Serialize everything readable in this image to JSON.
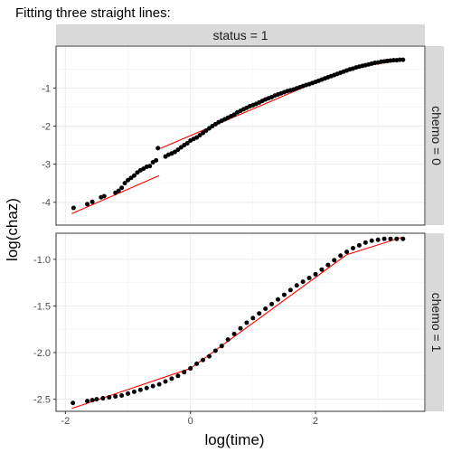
{
  "chart_data": {
    "type": "scatter",
    "title": "Fitting three straight lines:",
    "xlabel": "log(time)",
    "ylabel": "log(chaz)",
    "column_strip": "status = 1",
    "grid": true,
    "x_range": [
      -2.15,
      3.75
    ],
    "x_ticks": [
      -2,
      0,
      2
    ],
    "x_tick_labels": [
      "-2",
      "0",
      "2"
    ],
    "colors": {
      "points": "#000000",
      "fit": "#ff0000",
      "strip": "#d9d9d9",
      "grid": "#ebebeb",
      "border": "#333333"
    },
    "panels": [
      {
        "strip": "chemo = 0",
        "y_range": [
          -4.6,
          0.1
        ],
        "y_ticks": [
          -4,
          -3,
          -2,
          -1
        ],
        "y_tick_labels": [
          "-4",
          "-3",
          "-2",
          "-1"
        ],
        "points": [
          [
            -1.87,
            -4.15
          ],
          [
            -1.65,
            -4.05
          ],
          [
            -1.57,
            -3.99
          ],
          [
            -1.43,
            -3.87
          ],
          [
            -1.38,
            -3.84
          ],
          [
            -1.2,
            -3.75
          ],
          [
            -1.15,
            -3.7
          ],
          [
            -1.1,
            -3.62
          ],
          [
            -1.05,
            -3.5
          ],
          [
            -1.0,
            -3.42
          ],
          [
            -0.95,
            -3.36
          ],
          [
            -0.9,
            -3.3
          ],
          [
            -0.85,
            -3.22
          ],
          [
            -0.8,
            -3.16
          ],
          [
            -0.75,
            -3.12
          ],
          [
            -0.7,
            -3.07
          ],
          [
            -0.65,
            -3.05
          ],
          [
            -0.6,
            -2.95
          ],
          [
            -0.55,
            -2.9
          ],
          [
            -0.52,
            -2.58
          ],
          [
            -0.4,
            -2.8
          ],
          [
            -0.35,
            -2.75
          ],
          [
            -0.3,
            -2.72
          ],
          [
            -0.25,
            -2.68
          ],
          [
            -0.2,
            -2.62
          ],
          [
            -0.15,
            -2.56
          ],
          [
            -0.1,
            -2.5
          ],
          [
            -0.05,
            -2.45
          ],
          [
            0.0,
            -2.38
          ],
          [
            0.05,
            -2.34
          ],
          [
            0.1,
            -2.3
          ],
          [
            0.15,
            -2.24
          ],
          [
            0.2,
            -2.18
          ],
          [
            0.25,
            -2.12
          ],
          [
            0.3,
            -2.06
          ],
          [
            0.35,
            -2.0
          ],
          [
            0.4,
            -1.95
          ],
          [
            0.45,
            -1.9
          ],
          [
            0.5,
            -1.86
          ],
          [
            0.55,
            -1.82
          ],
          [
            0.6,
            -1.78
          ],
          [
            0.65,
            -1.74
          ],
          [
            0.7,
            -1.7
          ],
          [
            0.75,
            -1.64
          ],
          [
            0.8,
            -1.6
          ],
          [
            0.85,
            -1.56
          ],
          [
            0.9,
            -1.52
          ],
          [
            0.95,
            -1.48
          ],
          [
            1.0,
            -1.45
          ],
          [
            1.05,
            -1.42
          ],
          [
            1.1,
            -1.38
          ],
          [
            1.15,
            -1.34
          ],
          [
            1.2,
            -1.3
          ],
          [
            1.25,
            -1.27
          ],
          [
            1.3,
            -1.24
          ],
          [
            1.35,
            -1.2
          ],
          [
            1.4,
            -1.17
          ],
          [
            1.45,
            -1.14
          ],
          [
            1.5,
            -1.11
          ],
          [
            1.55,
            -1.08
          ],
          [
            1.6,
            -1.06
          ],
          [
            1.65,
            -1.04
          ],
          [
            1.7,
            -1.01
          ],
          [
            1.75,
            -0.98
          ],
          [
            1.8,
            -0.95
          ],
          [
            1.85,
            -0.92
          ],
          [
            1.9,
            -0.9
          ],
          [
            1.95,
            -0.87
          ],
          [
            2.0,
            -0.84
          ],
          [
            2.05,
            -0.81
          ],
          [
            2.1,
            -0.78
          ],
          [
            2.15,
            -0.75
          ],
          [
            2.2,
            -0.72
          ],
          [
            2.25,
            -0.69
          ],
          [
            2.3,
            -0.66
          ],
          [
            2.35,
            -0.63
          ],
          [
            2.4,
            -0.6
          ],
          [
            2.45,
            -0.57
          ],
          [
            2.5,
            -0.54
          ],
          [
            2.55,
            -0.51
          ],
          [
            2.6,
            -0.49
          ],
          [
            2.65,
            -0.46
          ],
          [
            2.7,
            -0.44
          ],
          [
            2.75,
            -0.42
          ],
          [
            2.8,
            -0.4
          ],
          [
            2.85,
            -0.38
          ],
          [
            2.9,
            -0.36
          ],
          [
            2.95,
            -0.34
          ],
          [
            3.0,
            -0.33
          ],
          [
            3.05,
            -0.31
          ],
          [
            3.1,
            -0.3
          ],
          [
            3.15,
            -0.29
          ],
          [
            3.2,
            -0.28
          ],
          [
            3.25,
            -0.27
          ],
          [
            3.3,
            -0.27
          ],
          [
            3.35,
            -0.26
          ],
          [
            3.4,
            -0.26
          ]
        ],
        "fit_lines": [
          [
            [
              -1.9,
              -4.3
            ],
            [
              -0.5,
              -3.3
            ]
          ],
          [
            [
              -0.5,
              -2.6
            ],
            [
              2.5,
              -0.5
            ]
          ],
          [
            [
              2.5,
              -0.5
            ],
            [
              3.4,
              -0.26
            ]
          ]
        ]
      },
      {
        "strip": "chemo = 1",
        "y_range": [
          -2.63,
          -0.72
        ],
        "y_ticks": [
          -2.5,
          -2.0,
          -1.5,
          -1.0
        ],
        "y_tick_labels": [
          "-2.5",
          "-2.0",
          "-1.5",
          "-1.0"
        ],
        "points": [
          [
            -1.88,
            -2.54
          ],
          [
            -1.65,
            -2.52
          ],
          [
            -1.57,
            -2.51
          ],
          [
            -1.5,
            -2.5
          ],
          [
            -1.4,
            -2.49
          ],
          [
            -1.3,
            -2.48
          ],
          [
            -1.2,
            -2.47
          ],
          [
            -1.1,
            -2.46
          ],
          [
            -1.0,
            -2.44
          ],
          [
            -0.9,
            -2.42
          ],
          [
            -0.8,
            -2.4
          ],
          [
            -0.7,
            -2.38
          ],
          [
            -0.6,
            -2.36
          ],
          [
            -0.5,
            -2.34
          ],
          [
            -0.4,
            -2.31
          ],
          [
            -0.3,
            -2.28
          ],
          [
            -0.2,
            -2.25
          ],
          [
            -0.1,
            -2.21
          ],
          [
            0.0,
            -2.17
          ],
          [
            0.1,
            -2.12
          ],
          [
            0.2,
            -2.08
          ],
          [
            0.3,
            -2.04
          ],
          [
            0.4,
            -1.98
          ],
          [
            0.5,
            -1.93
          ],
          [
            0.6,
            -1.86
          ],
          [
            0.7,
            -1.8
          ],
          [
            0.8,
            -1.74
          ],
          [
            0.9,
            -1.68
          ],
          [
            1.0,
            -1.63
          ],
          [
            1.1,
            -1.58
          ],
          [
            1.2,
            -1.53
          ],
          [
            1.3,
            -1.48
          ],
          [
            1.4,
            -1.43
          ],
          [
            1.5,
            -1.38
          ],
          [
            1.6,
            -1.33
          ],
          [
            1.7,
            -1.28
          ],
          [
            1.8,
            -1.24
          ],
          [
            1.9,
            -1.2
          ],
          [
            2.0,
            -1.16
          ],
          [
            2.1,
            -1.11
          ],
          [
            2.2,
            -1.06
          ],
          [
            2.3,
            -1.01
          ],
          [
            2.4,
            -0.96
          ],
          [
            2.5,
            -0.92
          ],
          [
            2.6,
            -0.88
          ],
          [
            2.7,
            -0.85
          ],
          [
            2.8,
            -0.82
          ],
          [
            2.9,
            -0.8
          ],
          [
            3.0,
            -0.79
          ],
          [
            3.1,
            -0.78
          ],
          [
            3.2,
            -0.78
          ],
          [
            3.3,
            -0.78
          ],
          [
            3.4,
            -0.78
          ]
        ],
        "fit_lines": [
          [
            [
              -1.9,
              -2.6
            ],
            [
              0.0,
              -2.17
            ]
          ],
          [
            [
              0.0,
              -2.17
            ],
            [
              2.5,
              -0.95
            ]
          ],
          [
            [
              2.5,
              -0.95
            ],
            [
              3.4,
              -0.76
            ]
          ]
        ]
      }
    ]
  }
}
